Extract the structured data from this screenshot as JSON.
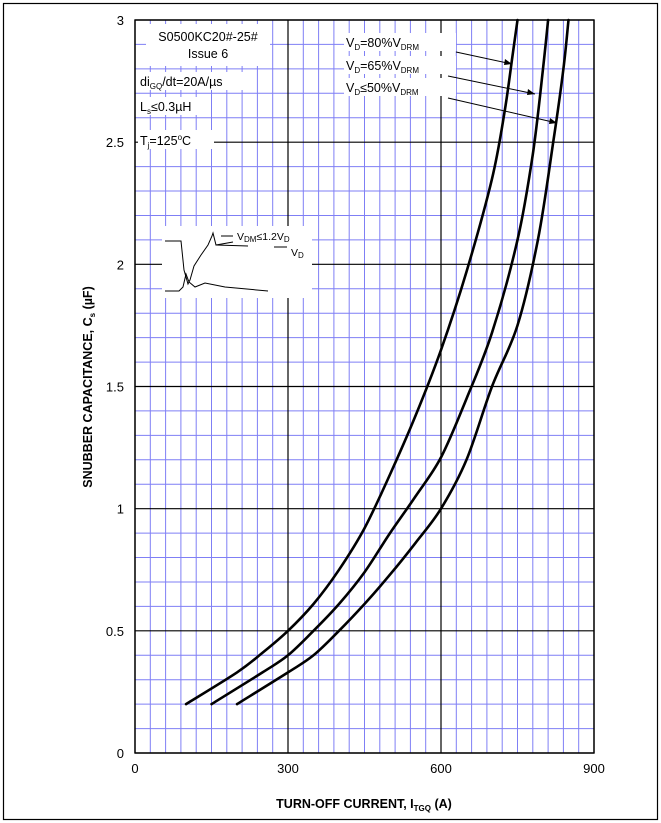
{
  "chart_data": {
    "type": "line",
    "device": "S0500KC20#-25#",
    "issue": "Issue 6",
    "conditions": {
      "di_prefix": "di",
      "di_sub": "GQ",
      "di_suffix": "/dt=20A/µs",
      "ls_prefix": "L",
      "ls_sub": "s",
      "ls_suffix": "≤0.3µH",
      "tj_prefix": "T",
      "tj_sub": "j",
      "tj_value": "=125",
      "tj_sup": "o",
      "tj_unit": "C"
    },
    "xlabel_main": "TURN-OFF CURRENT, I",
    "xlabel_sub": "TGQ",
    "xlabel_unit": " (A)",
    "ylabel_main": "SNUBBER CAPACITANCE, C",
    "ylabel_sub": "s",
    "ylabel_unit": " (µF)",
    "xlim": [
      0,
      900
    ],
    "ylim": [
      0,
      3
    ],
    "x_ticks": [
      "0",
      "300",
      "600",
      "900"
    ],
    "y_ticks": [
      "0",
      "0.5",
      "1",
      "1.5",
      "2",
      "2.5",
      "3"
    ],
    "grid": true,
    "series": [
      {
        "name_prefix": "V",
        "name_sub1": "D",
        "name_mid": "=80%V",
        "name_sub2": "DRM",
        "points": [
          [
            100,
            0.2
          ],
          [
            200,
            0.33
          ],
          [
            250,
            0.41
          ],
          [
            300,
            0.5
          ],
          [
            350,
            0.61
          ],
          [
            400,
            0.75
          ],
          [
            450,
            0.92
          ],
          [
            500,
            1.14
          ],
          [
            550,
            1.38
          ],
          [
            600,
            1.65
          ],
          [
            650,
            1.97
          ],
          [
            700,
            2.35
          ],
          [
            725,
            2.63
          ],
          [
            740,
            2.85
          ],
          [
            750,
            3.0
          ]
        ]
      },
      {
        "name_prefix": "V",
        "name_sub1": "D",
        "name_mid": "=65%V",
        "name_sub2": "DRM",
        "points": [
          [
            150,
            0.2
          ],
          [
            250,
            0.33
          ],
          [
            300,
            0.4
          ],
          [
            350,
            0.5
          ],
          [
            400,
            0.61
          ],
          [
            450,
            0.74
          ],
          [
            500,
            0.9
          ],
          [
            550,
            1.05
          ],
          [
            600,
            1.21
          ],
          [
            650,
            1.45
          ],
          [
            700,
            1.72
          ],
          [
            750,
            2.1
          ],
          [
            780,
            2.45
          ],
          [
            800,
            2.8
          ],
          [
            810,
            3.0
          ]
        ]
      },
      {
        "name_prefix": "V",
        "name_sub1": "D",
        "name_mid": "≤50%V",
        "name_sub2": "DRM",
        "points": [
          [
            200,
            0.2
          ],
          [
            300,
            0.33
          ],
          [
            350,
            0.4
          ],
          [
            400,
            0.5
          ],
          [
            450,
            0.61
          ],
          [
            500,
            0.73
          ],
          [
            550,
            0.86
          ],
          [
            600,
            1.0
          ],
          [
            650,
            1.2
          ],
          [
            700,
            1.5
          ],
          [
            750,
            1.75
          ],
          [
            790,
            2.1
          ],
          [
            820,
            2.5
          ],
          [
            840,
            2.8
          ],
          [
            850,
            3.0
          ]
        ]
      }
    ]
  },
  "inset": {
    "line1_prefix": "V",
    "line1_sub": "DM",
    "line1_suffix": "≤1.2V",
    "line1_sub2": "D",
    "line2_prefix": "V",
    "line2_sub": "D"
  }
}
